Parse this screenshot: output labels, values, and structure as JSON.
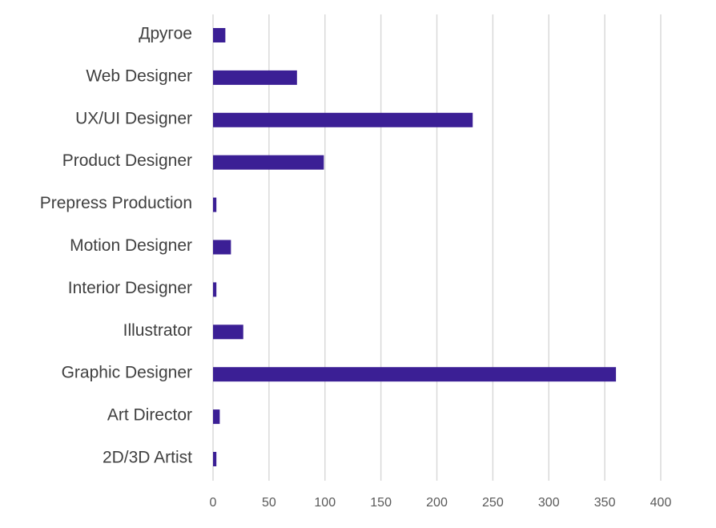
{
  "chart_data": {
    "type": "bar",
    "orientation": "horizontal",
    "title": "",
    "xlabel": "",
    "ylabel": "",
    "categories": [
      "2D/3D Artist",
      "Art Director",
      "Graphic Designer",
      "Illustrator",
      "Interior Designer",
      "Motion Designer",
      "Prepress Production",
      "Product Designer",
      "UX/UI Designer",
      "Web Designer",
      "Другое"
    ],
    "values": [
      3,
      6,
      360,
      27,
      3,
      16,
      3,
      99,
      232,
      75,
      11
    ],
    "xlim": [
      0,
      400
    ],
    "x_ticks": [
      0,
      50,
      100,
      150,
      200,
      250,
      300,
      350,
      400
    ],
    "x_tick_labels": [
      "0",
      "50",
      "100",
      "150",
      "200",
      "250",
      "300",
      "350",
      "400"
    ],
    "grid": true,
    "legend": "none",
    "colors": {
      "bar": "#3b1f95",
      "grid": "#d9d9d9",
      "category_text": "#404040",
      "tick_text": "#595959"
    }
  }
}
